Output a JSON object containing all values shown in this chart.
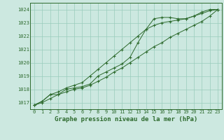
{
  "title": "Graphe pression niveau de la mer (hPa)",
  "bg_color": "#cce8e0",
  "grid_color": "#99ccbb",
  "line_color": "#2d6a2d",
  "xlim": [
    -0.5,
    23.5
  ],
  "ylim": [
    1016.5,
    1024.5
  ],
  "yticks": [
    1017,
    1018,
    1019,
    1020,
    1021,
    1022,
    1023,
    1024
  ],
  "xticks": [
    0,
    1,
    2,
    3,
    4,
    5,
    6,
    7,
    8,
    9,
    10,
    11,
    12,
    13,
    14,
    15,
    16,
    17,
    18,
    19,
    20,
    21,
    22,
    23
  ],
  "hours": [
    0,
    1,
    2,
    3,
    4,
    5,
    6,
    7,
    8,
    9,
    10,
    11,
    12,
    13,
    14,
    15,
    16,
    17,
    18,
    19,
    20,
    21,
    22,
    23
  ],
  "line1": [
    1016.8,
    1017.1,
    1017.6,
    1017.6,
    1018.0,
    1018.1,
    1018.2,
    1018.4,
    1019.0,
    1019.3,
    1019.6,
    1019.9,
    1020.4,
    1021.5,
    1022.5,
    1023.3,
    1023.4,
    1023.4,
    1023.3,
    1023.3,
    1023.5,
    1023.8,
    1024.0,
    1024.0
  ],
  "line2": [
    1016.8,
    1017.1,
    1017.6,
    1017.8,
    1018.1,
    1018.3,
    1018.5,
    1019.0,
    1019.5,
    1020.0,
    1020.5,
    1021.0,
    1021.5,
    1022.0,
    1022.5,
    1022.8,
    1023.0,
    1023.1,
    1023.2,
    1023.3,
    1023.5,
    1023.7,
    1023.9,
    1024.0
  ],
  "line3": [
    1016.8,
    1017.0,
    1017.3,
    1017.6,
    1017.8,
    1018.0,
    1018.1,
    1018.3,
    1018.6,
    1018.9,
    1019.3,
    1019.6,
    1020.0,
    1020.4,
    1020.8,
    1021.2,
    1021.5,
    1021.9,
    1022.2,
    1022.5,
    1022.8,
    1023.1,
    1023.5,
    1024.0
  ],
  "title_fontsize": 6.5,
  "tick_fontsize": 5.0
}
